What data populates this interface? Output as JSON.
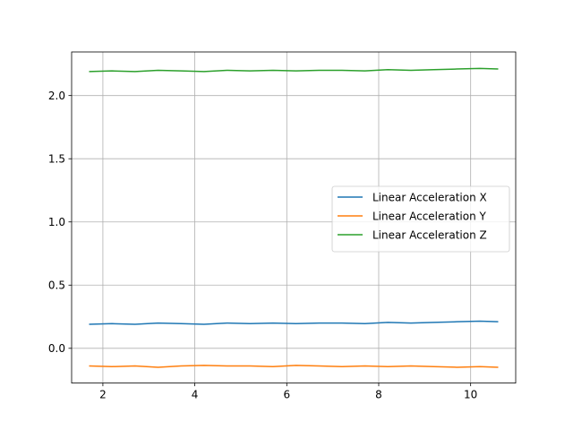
{
  "chart_data": {
    "type": "line",
    "title": "",
    "xlabel": "",
    "ylabel": "",
    "xlim": [
      1.32,
      10.98
    ],
    "ylim": [
      -0.275,
      2.345
    ],
    "xticks": [
      2,
      4,
      6,
      8,
      10
    ],
    "xtick_labels": [
      "2",
      "4",
      "6",
      "8",
      "10"
    ],
    "yticks": [
      0.0,
      0.5,
      1.0,
      1.5,
      2.0
    ],
    "ytick_labels": [
      "0.0",
      "0.5",
      "1.0",
      "1.5",
      "2.0"
    ],
    "grid": true,
    "legend_position": "center-right",
    "series": [
      {
        "name": "Linear Acceleration X",
        "color": "#1f77b4",
        "x": [
          1.7,
          2.2,
          2.7,
          3.2,
          3.7,
          4.2,
          4.7,
          5.2,
          5.7,
          6.2,
          6.7,
          7.2,
          7.7,
          8.2,
          8.7,
          9.2,
          9.7,
          10.2,
          10.6
        ],
        "y": [
          0.19,
          0.195,
          0.19,
          0.2,
          0.195,
          0.19,
          0.2,
          0.195,
          0.2,
          0.195,
          0.2,
          0.2,
          0.195,
          0.205,
          0.2,
          0.205,
          0.21,
          0.215,
          0.21
        ]
      },
      {
        "name": "Linear Acceleration Y",
        "color": "#ff7f0e",
        "x": [
          1.7,
          2.2,
          2.7,
          3.2,
          3.7,
          4.2,
          4.7,
          5.2,
          5.7,
          6.2,
          6.7,
          7.2,
          7.7,
          8.2,
          8.7,
          9.2,
          9.7,
          10.2,
          10.6
        ],
        "y": [
          -0.14,
          -0.145,
          -0.14,
          -0.15,
          -0.14,
          -0.135,
          -0.14,
          -0.14,
          -0.145,
          -0.135,
          -0.14,
          -0.145,
          -0.14,
          -0.145,
          -0.14,
          -0.145,
          -0.15,
          -0.145,
          -0.15
        ]
      },
      {
        "name": "Linear Acceleration Z",
        "color": "#2ca02c",
        "x": [
          1.7,
          2.2,
          2.7,
          3.2,
          3.7,
          4.2,
          4.7,
          5.2,
          5.7,
          6.2,
          6.7,
          7.2,
          7.7,
          8.2,
          8.7,
          9.2,
          9.7,
          10.2,
          10.6
        ],
        "y": [
          2.19,
          2.195,
          2.19,
          2.2,
          2.195,
          2.19,
          2.2,
          2.195,
          2.2,
          2.195,
          2.2,
          2.2,
          2.195,
          2.205,
          2.2,
          2.205,
          2.21,
          2.215,
          2.21
        ]
      }
    ]
  }
}
